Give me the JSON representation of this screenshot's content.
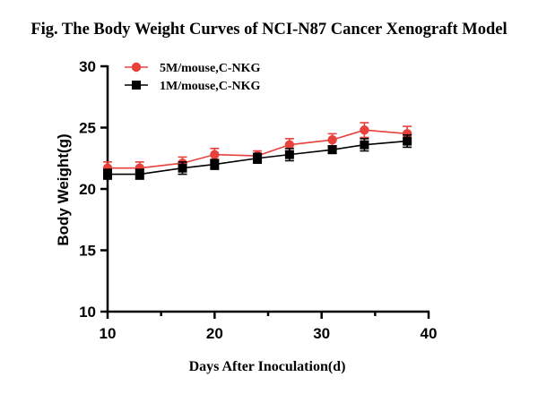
{
  "chart_data": {
    "type": "line",
    "title": "Fig. The Body Weight Curves of NCI-N87 Cancer Xenograft Model",
    "xlabel": "Days After Inoculation(d)",
    "ylabel": "Body Weight(g)",
    "xlim": [
      10,
      40
    ],
    "ylim": [
      10,
      30
    ],
    "xticks": [
      10,
      20,
      30,
      40
    ],
    "yticks": [
      10,
      15,
      20,
      25,
      30
    ],
    "legend_position": "top-left",
    "grid": false,
    "x": [
      10,
      13,
      17,
      20,
      24,
      27,
      31,
      34,
      38
    ],
    "series": [
      {
        "name": "5M/mouse,C-NKG",
        "color": "#e8413c",
        "marker": "circle",
        "values": [
          21.7,
          21.7,
          22.1,
          22.8,
          22.7,
          23.6,
          24.0,
          24.8,
          24.5
        ],
        "errors": [
          0.5,
          0.5,
          0.5,
          0.5,
          0.4,
          0.5,
          0.5,
          0.6,
          0.6
        ]
      },
      {
        "name": "1M/mouse,C-NKG",
        "color": "#000000",
        "marker": "square",
        "values": [
          21.2,
          21.2,
          21.7,
          22.0,
          22.5,
          22.8,
          23.2,
          23.6,
          23.9
        ],
        "errors": [
          0.4,
          0.4,
          0.5,
          0.4,
          0.4,
          0.5,
          0.3,
          0.5,
          0.5
        ]
      }
    ]
  }
}
